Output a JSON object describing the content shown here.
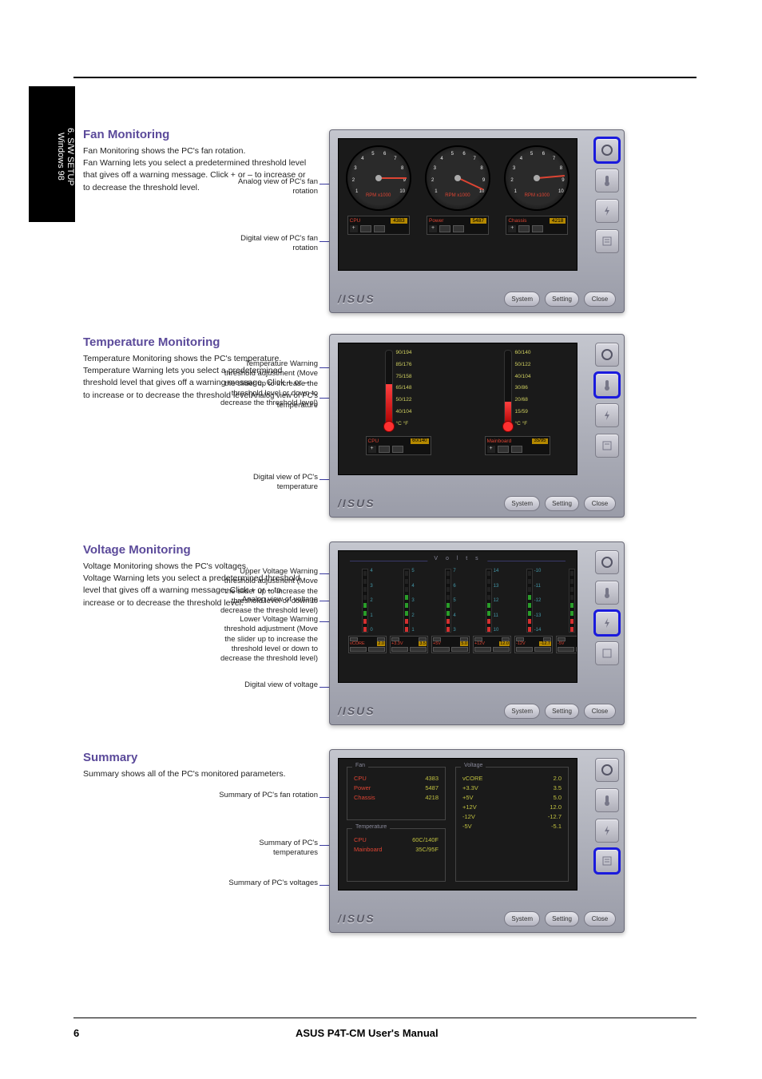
{
  "page": {
    "number": "6",
    "footer_title": "ASUS P4T-CM User's Manual",
    "side_tab_chapter": "6. S/W SETUP",
    "side_tab_sub": "Windows 98"
  },
  "brand": "/ISUS",
  "buttons": {
    "tgl_plus": "+",
    "tgl_minus": "–",
    "system": "System",
    "setting": "Setting",
    "close": "Close"
  },
  "fan": {
    "title": "Fan Monitoring",
    "desc": "Fan Monitoring shows the PC's fan rotation.\nFan Warning lets you select a predetermined threshold level that gives off a warning message. Click + or – to increase or to decrease the threshold level.",
    "callout_analog": "Analog view of PC's fan rotation",
    "callout_digital": "Digital view of PC's fan rotation",
    "rpm_label": "RPM\nx1000",
    "gauges": [
      {
        "name": "CPU",
        "value": "4383",
        "needle_deg": 30
      },
      {
        "name": "Power",
        "value": "5487",
        "needle_deg": 55
      },
      {
        "name": "Chassis",
        "value": "4218",
        "needle_deg": 25
      }
    ],
    "ticks": [
      "1",
      "2",
      "3",
      "4",
      "5",
      "6",
      "7",
      "8",
      "9",
      "10"
    ]
  },
  "temp": {
    "title": "Temperature Monitoring",
    "desc": "Temperature Monitoring shows the PC's temperature.\nTemperature Warning lets you select a predetermined threshold level that gives off a warning message. Click + or – to increase or to decrease the threshold level.",
    "callout_high": "Temperature Warning threshold adjustment (Move the slider up to increase the threshold level or down to decrease the threshold level)",
    "callout_current": "Analog view of PC's temperature",
    "callout_label": "Digital view of PC's temperature",
    "items": [
      {
        "name": "CPU",
        "value": "60/140",
        "fill_pct": 55,
        "scale": [
          "90/194",
          "85/176",
          "75/158",
          "65/148",
          "50/122",
          "40/104",
          "°C  °F"
        ]
      },
      {
        "name": "Mainboard",
        "value": "35/95",
        "fill_pct": 32,
        "scale": [
          "60/140",
          "50/122",
          "40/104",
          "30/86",
          "20/68",
          "15/59",
          "°C  °F"
        ]
      }
    ]
  },
  "volt": {
    "title": "Voltage Monitoring",
    "desc": "Voltage Monitoring shows the PC's voltages.\nVoltage Warning lets you select a predetermined threshold level that gives off a warning message. Click + or – to increase or to decrease the threshold level.",
    "header": "V o l t s",
    "callout_upper": "Upper Voltage Warning threshold adjustment (Move the slider up to increase the threshold level or down to decrease the threshold level)",
    "callout_current": "Analog view of voltage",
    "callout_lower": "Lower Voltage Warning threshold adjustment (Move the slider up to increase the threshold level or down to decrease the threshold level)",
    "callout_digital": "Digital view of voltage",
    "bars": [
      {
        "name": "vCORE",
        "value": "2.0",
        "scale": [
          "4",
          "3",
          "2",
          "1",
          "0"
        ],
        "fill_pct": 50,
        "colors": [
          "#2a9d2a",
          "#2a9d2a",
          "#2a9d2a",
          "#d43",
          "#d43"
        ]
      },
      {
        "name": "+3.3V",
        "value": "3.5",
        "scale": [
          "5",
          "4",
          "3",
          "2",
          "1"
        ],
        "fill_pct": 60,
        "colors": [
          "#d43",
          "#2a9d2a",
          "#2a9d2a",
          "#2a9d2a",
          "#d43"
        ]
      },
      {
        "name": "+5V",
        "value": "5.0",
        "scale": [
          "7",
          "6",
          "5",
          "4",
          "3"
        ],
        "fill_pct": 50,
        "colors": [
          "#d43",
          "#2a9d2a",
          "#2a9d2a",
          "#2a9d2a",
          "#d43"
        ]
      },
      {
        "name": "+12V",
        "value": "12.0",
        "scale": [
          "14",
          "13",
          "12",
          "11",
          "10"
        ],
        "fill_pct": 50,
        "colors": [
          "#d43",
          "#2a9d2a",
          "#2a9d2a",
          "#2a9d2a",
          "#d43"
        ]
      },
      {
        "name": "-12V",
        "value": "-12.7",
        "scale": [
          "-10",
          "-11",
          "-12",
          "-13",
          "-14"
        ],
        "fill_pct": 55,
        "colors": [
          "#d43",
          "#2a9d2a",
          "#2a9d2a",
          "#2a9d2a",
          "#d43"
        ]
      },
      {
        "name": "-5V",
        "value": "-5.1",
        "scale": [
          "-3",
          "-4",
          "-5",
          "-6",
          "-7"
        ],
        "fill_pct": 50,
        "colors": [
          "#d43",
          "#2a9d2a",
          "#2a9d2a",
          "#2a9d2a",
          "#d43"
        ]
      }
    ]
  },
  "summary": {
    "title": "Summary",
    "desc": "Summary shows all of the PC's monitored parameters.",
    "callout_fan": "Summary of PC's fan rotation",
    "callout_temp": "Summary of PC's temperatures",
    "callout_volt": "Summary of PC's voltages",
    "fan_legend": "Fan",
    "temp_legend": "Temperature",
    "volt_legend": "Voltage",
    "fan_rows": [
      {
        "k": "CPU",
        "v": "4383"
      },
      {
        "k": "Power",
        "v": "5487"
      },
      {
        "k": "Chassis",
        "v": "4218"
      }
    ],
    "temp_rows": [
      {
        "k": "CPU",
        "v": "60C/140F"
      },
      {
        "k": "Mainboard",
        "v": "35C/95F"
      }
    ],
    "volt_rows": [
      {
        "k": "vCORE",
        "v": "2.0"
      },
      {
        "k": "+3.3V",
        "v": "3.5"
      },
      {
        "k": "+5V",
        "v": "5.0"
      },
      {
        "k": "+12V",
        "v": "12.0"
      },
      {
        "k": "-12V",
        "v": "-12.7"
      },
      {
        "k": "-5V",
        "v": "-5.1"
      }
    ]
  },
  "colors": {
    "accent_blue": "#1a1add",
    "panel_bg": "#b5b7c2",
    "inner_bg": "#1a1a1a",
    "highlight": "#b58900",
    "red": "#d43030",
    "green": "#2a9d2a"
  }
}
